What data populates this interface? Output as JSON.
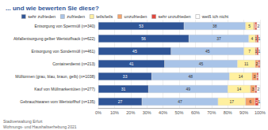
{
  "chart_data": {
    "type": "bar",
    "title": "... und wie bewerten Sie diese?",
    "orientation": "horizontal",
    "stacked": true,
    "data_labels": true,
    "grid": true,
    "legend": "top",
    "categories": [
      "Entsorgung von Sperrmüll (n=340)",
      "Abfallentsorgung gelber Wertstoffsack (n=622)",
      "Entsorgung von Sondermüll (n=461)",
      "Containerdienst (n=213)",
      "Mülltonnen (grau, blau, braun, gelb) (n=1038)",
      "Kauf von Müllmarkentüten (n=277)",
      "Gebrauchtwaren vom Wertstoffhof (n=135)"
    ],
    "series": [
      {
        "name": "sehr zufrieden",
        "color": "#2f5597",
        "values": [
          53,
          56,
          45,
          41,
          33,
          31,
          27
        ]
      },
      {
        "name": "zufrieden",
        "color": "#a9c4e8",
        "values": [
          38,
          37,
          45,
          45,
          48,
          49,
          47
        ]
      },
      {
        "name": "teils/teils",
        "color": "#fff0a0",
        "values": [
          5,
          4,
          7,
          11,
          14,
          14,
          17
        ]
      },
      {
        "name": "unzufrieden",
        "color": "#f6a46c",
        "values": [
          1,
          1,
          1,
          2,
          3,
          3,
          6
        ]
      },
      {
        "name": "sehr unzufrieden",
        "color": "#e2453c",
        "values": [
          1,
          1,
          1,
          1,
          1,
          1,
          2
        ]
      },
      {
        "name": "weiß ich nicht",
        "color": "#ffffff",
        "values": [
          2,
          1,
          1,
          0,
          1,
          2,
          1
        ]
      }
    ],
    "xlim": [
      0,
      100
    ],
    "xticks": [
      {
        "value": 0,
        "label": "0%"
      },
      {
        "value": 10,
        "label": "10%"
      },
      {
        "value": 20,
        "label": "20%"
      },
      {
        "value": 30,
        "label": "30%"
      },
      {
        "value": 40,
        "label": "40%"
      },
      {
        "value": 50,
        "label": "50%"
      },
      {
        "value": 60,
        "label": "60%"
      },
      {
        "value": 70,
        "label": "70%"
      },
      {
        "value": 80,
        "label": "80%"
      },
      {
        "value": 90,
        "label": "90%"
      },
      {
        "value": 100,
        "label": "100%"
      }
    ],
    "annotations": [
      "Stadtverwaltung Erfurt",
      "Wohnungs- und Haushaltserhebung 2021"
    ]
  }
}
